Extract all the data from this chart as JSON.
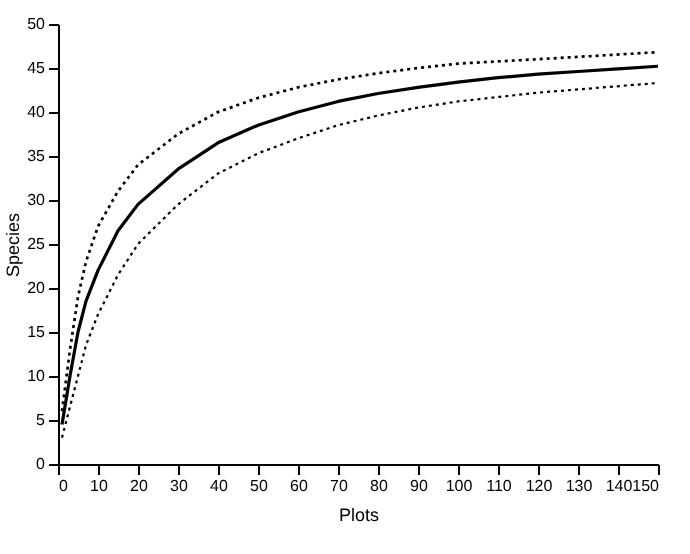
{
  "chart_data": {
    "type": "line",
    "xlabel": "Plots",
    "ylabel": "Species",
    "xlim": [
      0,
      150
    ],
    "ylim": [
      0,
      50
    ],
    "xticks": [
      0,
      10,
      20,
      30,
      40,
      50,
      60,
      70,
      80,
      90,
      100,
      110,
      120,
      130,
      140,
      150
    ],
    "yticks": [
      0,
      5,
      10,
      15,
      20,
      25,
      30,
      35,
      40,
      45,
      50
    ],
    "grid": false,
    "marker": "none",
    "series": [
      {
        "color": "#000000",
        "line_style": "solid",
        "x": [
          1,
          3,
          5,
          7,
          10,
          15,
          20,
          30,
          40,
          50,
          60,
          70,
          80,
          90,
          100,
          110,
          120,
          130,
          140,
          150
        ],
        "values": [
          4.5,
          10,
          15,
          18.5,
          22,
          26.5,
          29.5,
          33.5,
          36.5,
          38.5,
          40,
          41.2,
          42.1,
          42.8,
          43.4,
          43.9,
          44.3,
          44.6,
          44.9,
          45.2
        ]
      },
      {
        "color": "#000000",
        "line_style": "dotted",
        "x": [
          1,
          3,
          5,
          7,
          10,
          15,
          20,
          30,
          40,
          50,
          60,
          70,
          80,
          90,
          100,
          120,
          150
        ],
        "values": [
          6,
          13,
          19,
          23,
          27,
          31,
          34,
          37.5,
          40,
          41.6,
          42.8,
          43.7,
          44.4,
          45,
          45.5,
          46,
          46.8
        ]
      },
      {
        "color": "#000000",
        "line_style": "dotted",
        "x": [
          1,
          3,
          5,
          7,
          10,
          15,
          20,
          30,
          40,
          50,
          60,
          70,
          80,
          90,
          100,
          120,
          150
        ],
        "values": [
          3,
          6.5,
          10,
          13.5,
          17,
          21.5,
          25,
          29.5,
          33,
          35.3,
          37,
          38.5,
          39.6,
          40.5,
          41.2,
          42.2,
          43.3
        ]
      }
    ]
  }
}
